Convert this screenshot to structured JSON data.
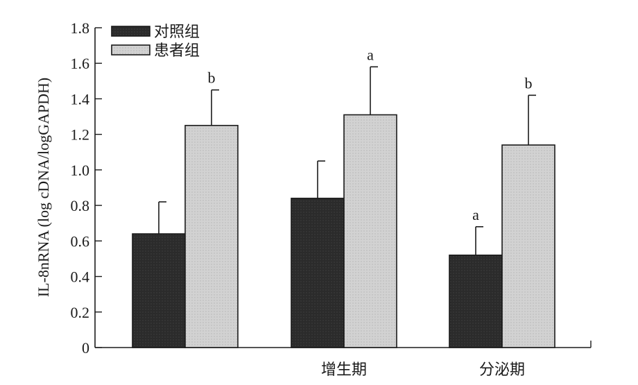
{
  "chart_data": {
    "type": "bar",
    "ylabel": "IL-8nRNA (log cDNA/logGAPDH)",
    "ylim": [
      0,
      1.8
    ],
    "yticks": [
      "0",
      "0.2",
      "0.4",
      "0.6",
      "0.8",
      "1.0",
      "1.2",
      "1.4",
      "1.6",
      "1.8"
    ],
    "categories": [
      "",
      "增生期",
      "分泌期"
    ],
    "series": [
      {
        "name": "对照组",
        "color": "#2e2e2e",
        "values": [
          0.64,
          0.84,
          0.52
        ],
        "errors": [
          0.18,
          0.21,
          0.16
        ],
        "annotations": [
          "",
          "",
          "a"
        ]
      },
      {
        "name": "患者组",
        "color": "#cfcfcf",
        "values": [
          1.25,
          1.31,
          1.14
        ],
        "errors": [
          0.2,
          0.27,
          0.28
        ],
        "annotations": [
          "b",
          "a",
          "b"
        ]
      }
    ],
    "legend_position": "top-left"
  }
}
